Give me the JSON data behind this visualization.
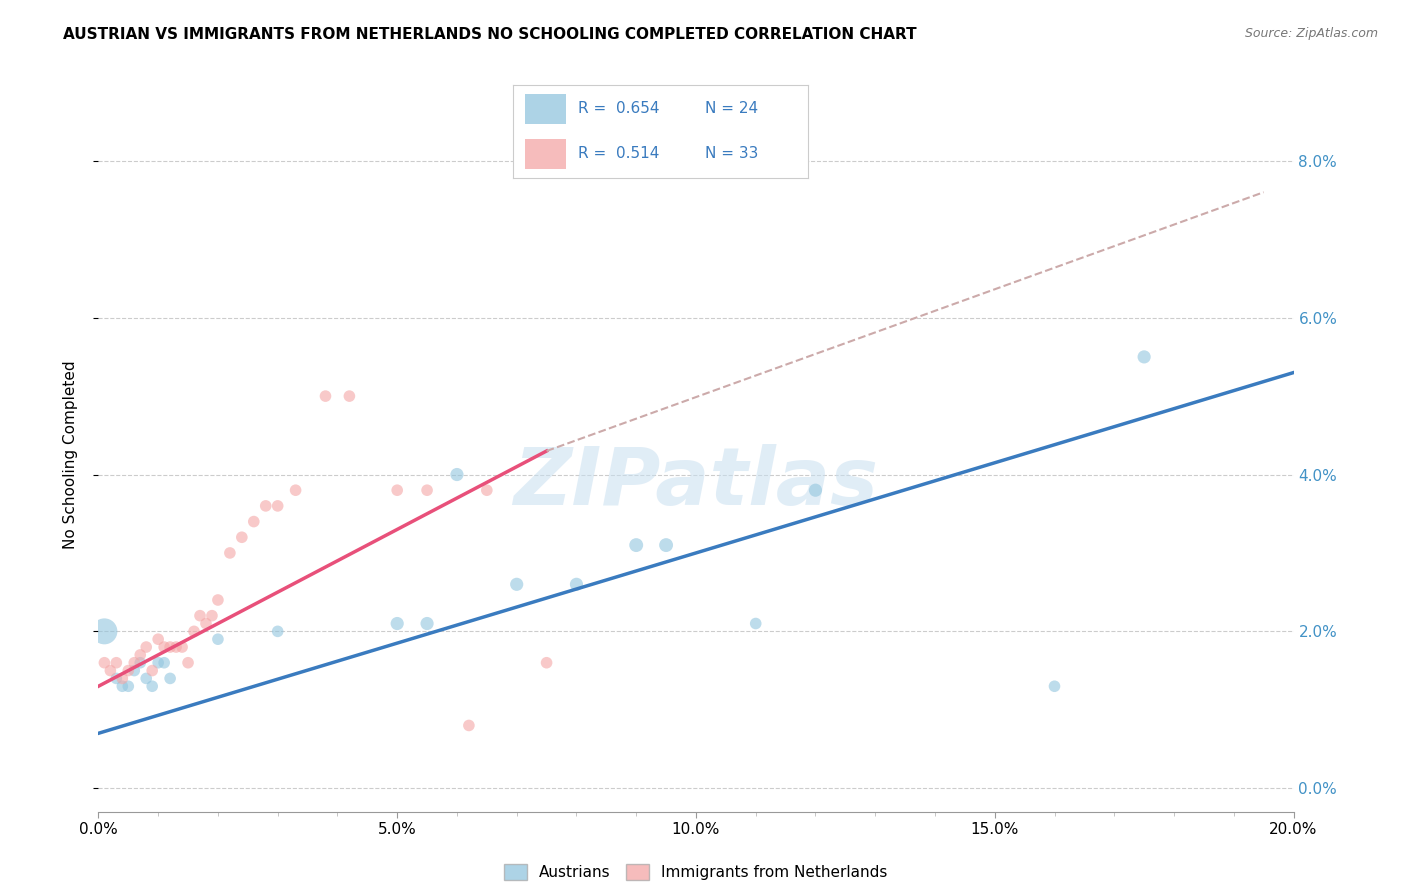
{
  "title": "AUSTRIAN VS IMMIGRANTS FROM NETHERLANDS NO SCHOOLING COMPLETED CORRELATION CHART",
  "source": "Source: ZipAtlas.com",
  "ylabel": "No Schooling Completed",
  "xlim": [
    0.0,
    0.2
  ],
  "ylim": [
    -0.003,
    0.088
  ],
  "ytick_values": [
    0.0,
    0.02,
    0.04,
    0.06,
    0.08
  ],
  "xtick_values": [
    0.0,
    0.05,
    0.1,
    0.15,
    0.2
  ],
  "legend_r1": "0.654",
  "legend_n1": "24",
  "legend_r2": "0.514",
  "legend_n2": "33",
  "blue_color": "#92c5de",
  "pink_color": "#f4a6a6",
  "blue_line_color": "#3a7bbf",
  "pink_line_color": "#e8507a",
  "dashed_line_color": "#ccaaaa",
  "watermark": "ZIPatlas",
  "blue_scatter_x": [
    0.001,
    0.003,
    0.004,
    0.005,
    0.006,
    0.007,
    0.008,
    0.009,
    0.01,
    0.011,
    0.012,
    0.02,
    0.03,
    0.05,
    0.055,
    0.06,
    0.07,
    0.08,
    0.09,
    0.095,
    0.11,
    0.12,
    0.16,
    0.175
  ],
  "blue_scatter_y": [
    0.02,
    0.014,
    0.013,
    0.013,
    0.015,
    0.016,
    0.014,
    0.013,
    0.016,
    0.016,
    0.014,
    0.019,
    0.02,
    0.021,
    0.021,
    0.04,
    0.026,
    0.026,
    0.031,
    0.031,
    0.021,
    0.038,
    0.013,
    0.055
  ],
  "blue_scatter_size": [
    350,
    70,
    70,
    70,
    70,
    70,
    70,
    70,
    70,
    70,
    70,
    70,
    70,
    90,
    90,
    90,
    90,
    90,
    100,
    100,
    70,
    90,
    70,
    90
  ],
  "pink_scatter_x": [
    0.001,
    0.002,
    0.003,
    0.004,
    0.005,
    0.006,
    0.007,
    0.008,
    0.009,
    0.01,
    0.011,
    0.012,
    0.013,
    0.014,
    0.015,
    0.016,
    0.017,
    0.018,
    0.019,
    0.02,
    0.022,
    0.024,
    0.026,
    0.028,
    0.03,
    0.033,
    0.038,
    0.042,
    0.05,
    0.055,
    0.062,
    0.065,
    0.075
  ],
  "pink_scatter_y": [
    0.016,
    0.015,
    0.016,
    0.014,
    0.015,
    0.016,
    0.017,
    0.018,
    0.015,
    0.019,
    0.018,
    0.018,
    0.018,
    0.018,
    0.016,
    0.02,
    0.022,
    0.021,
    0.022,
    0.024,
    0.03,
    0.032,
    0.034,
    0.036,
    0.036,
    0.038,
    0.05,
    0.05,
    0.038,
    0.038,
    0.008,
    0.038,
    0.016
  ],
  "pink_scatter_size": [
    70,
    70,
    70,
    70,
    70,
    70,
    70,
    70,
    70,
    70,
    70,
    70,
    70,
    70,
    70,
    70,
    70,
    70,
    70,
    70,
    70,
    70,
    70,
    70,
    70,
    70,
    70,
    70,
    70,
    70,
    70,
    70,
    70
  ],
  "blue_trend_x0": 0.0,
  "blue_trend_x1": 0.2,
  "blue_trend_y0": 0.007,
  "blue_trend_y1": 0.053,
  "pink_trend_x0": 0.0,
  "pink_trend_x1": 0.075,
  "pink_trend_y0": 0.013,
  "pink_trend_y1": 0.043,
  "dashed_trend_x0": 0.075,
  "dashed_trend_x1": 0.195,
  "dashed_trend_y0": 0.043,
  "dashed_trend_y1": 0.076
}
